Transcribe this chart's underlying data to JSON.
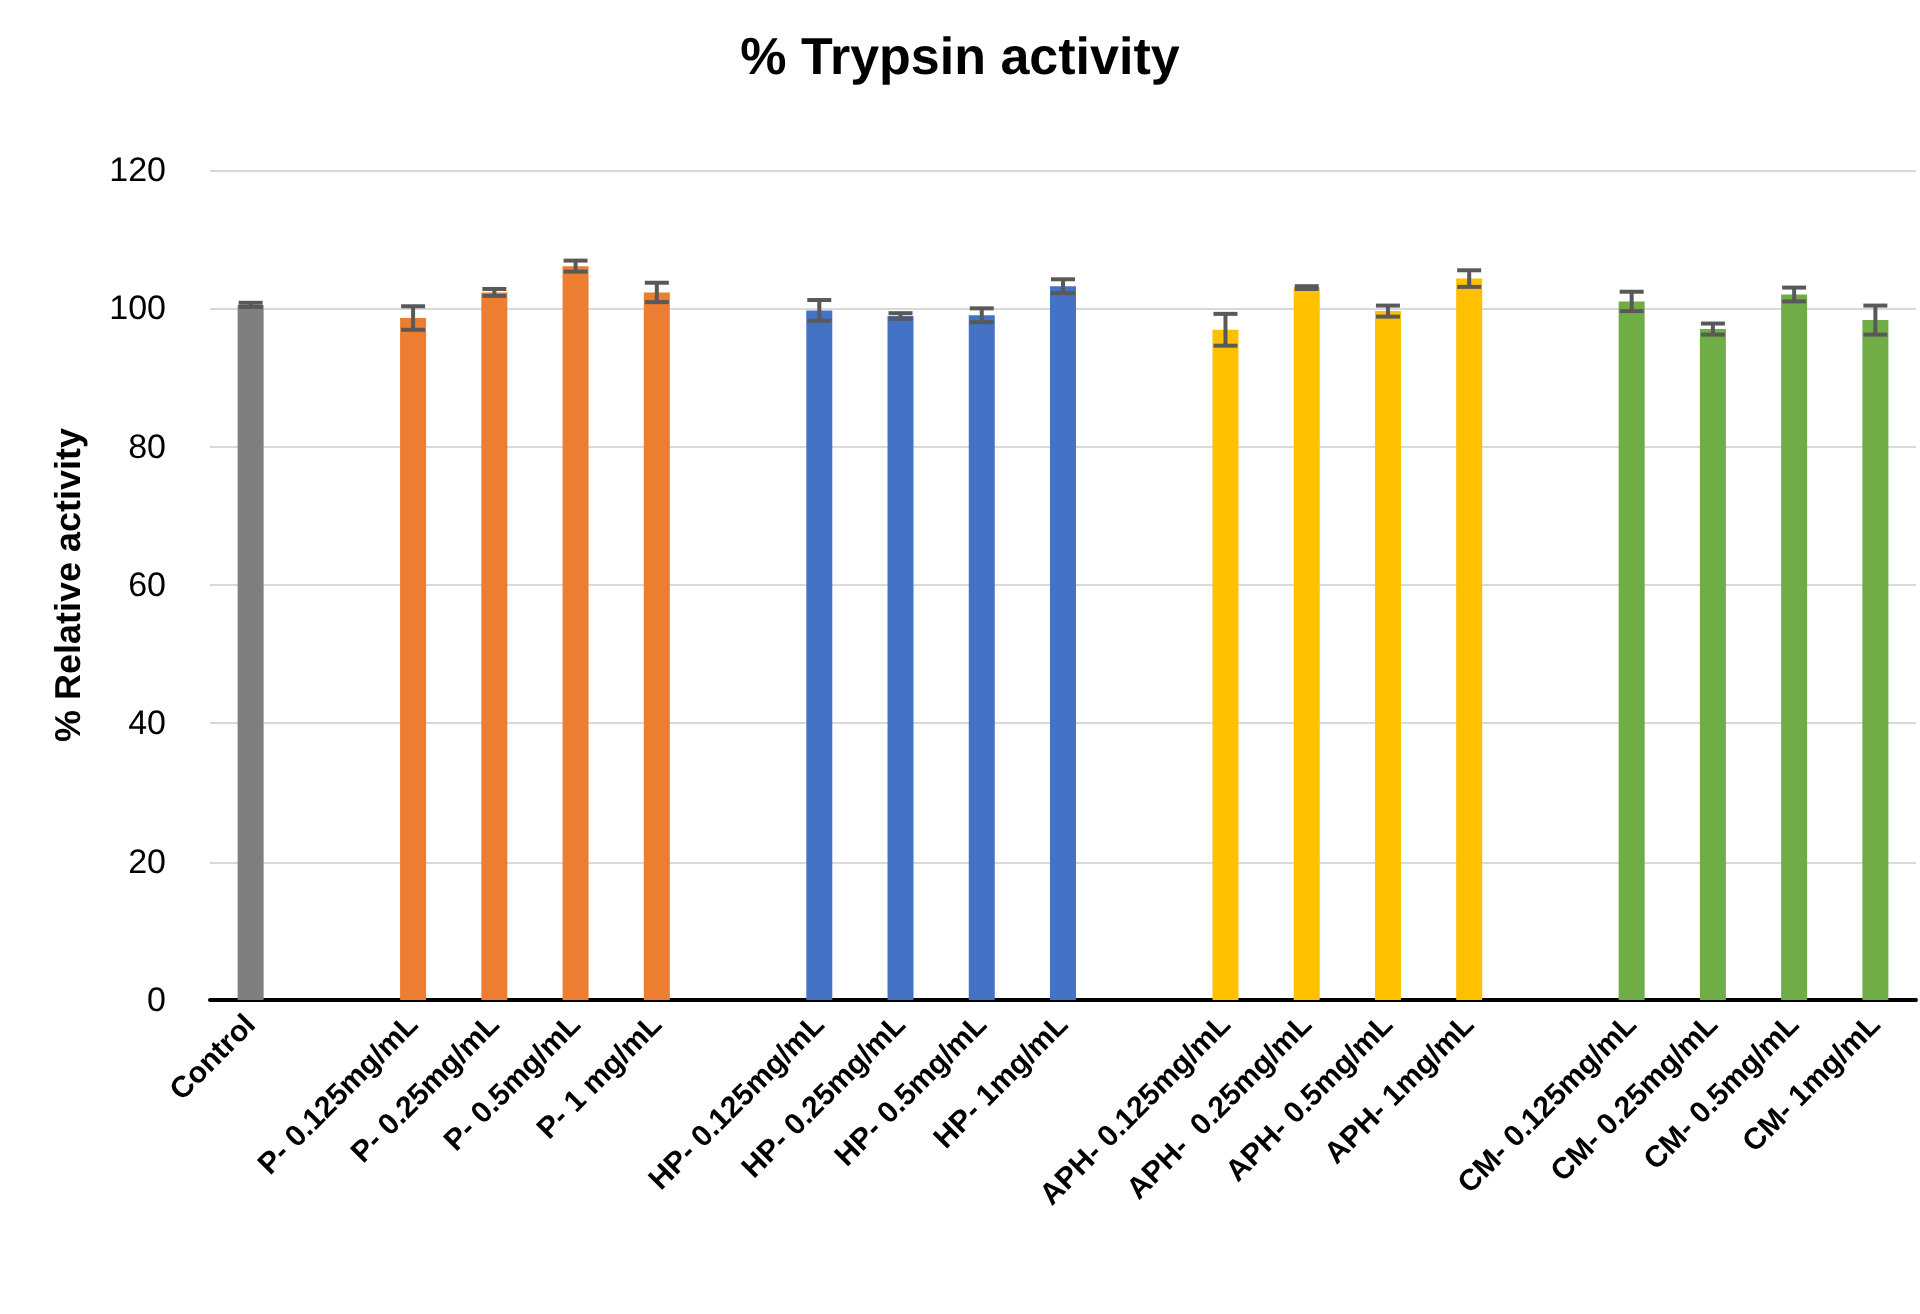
{
  "chart_data": {
    "type": "bar",
    "title": "% Trypsin activity",
    "ylabel": "% Relative activity",
    "categories": [
      "Control",
      null,
      "P- 0.125mg/mL",
      "P- 0.25mg/mL",
      "P- 0.5mg/mL",
      "P- 1 mg/mL",
      null,
      "HP- 0.125mg/mL",
      "HP- 0.25mg/mL",
      "HP- 0.5mg/mL",
      "HP- 1mg/mL",
      null,
      "APH- 0.125mg/mL",
      "APH-  0.25mg/mL",
      "APH- 0.5mg/mL",
      "APH- 1mg/mL",
      null,
      "CM- 0.125mg/mL",
      "CM- 0.25mg/mL",
      "CM- 0.5mg/mL",
      "CM- 1mg/mL"
    ],
    "values": [
      100.5,
      null,
      98.6,
      102.3,
      106.1,
      102.3,
      null,
      99.7,
      98.9,
      99.0,
      103.2,
      null,
      96.9,
      103.0,
      99.6,
      104.3,
      null,
      101.0,
      97.0,
      102.0,
      98.3
    ],
    "errors": [
      0.3,
      null,
      1.7,
      0.5,
      0.8,
      1.4,
      null,
      1.5,
      0.4,
      1.0,
      1.0,
      null,
      2.3,
      0.2,
      0.8,
      1.2,
      null,
      1.4,
      0.8,
      1.0,
      2.1
    ],
    "colors": [
      "#7f7f7f",
      null,
      "#ed7d31",
      "#ed7d31",
      "#ed7d31",
      "#ed7d31",
      null,
      "#4472c4",
      "#4472c4",
      "#4472c4",
      "#4472c4",
      null,
      "#ffc000",
      "#ffc000",
      "#ffc000",
      "#ffc000",
      null,
      "#70ad47",
      "#70ad47",
      "#70ad47",
      "#70ad47"
    ],
    "ylim": [
      0,
      120
    ],
    "yticks": [
      0,
      20,
      40,
      60,
      80,
      100,
      120
    ],
    "grid": "y"
  }
}
